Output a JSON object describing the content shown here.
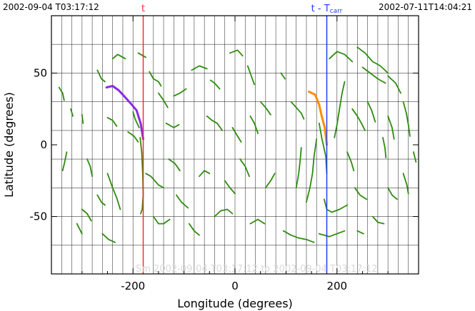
{
  "header": {
    "left_timestamp": "2002-09-04 T03:17:12",
    "right_timestamp": "2002-07-11T14:04:21",
    "faint_caption": "Sm 2002-09-04 T03:17:12 to 2002-09-04 T03:17:12"
  },
  "colors": {
    "axis": "#000000",
    "grid": "#000000",
    "green_filaments": "#2e8b0e",
    "purple_filament": "#8a2be2",
    "orange_filament": "#ff8c00",
    "red_marker": "#ff2a2a",
    "blue_marker": "#1f3cff"
  },
  "chart_data": {
    "type": "scatter",
    "xlabel": "Longitude (degrees)",
    "ylabel": "Latitude (degrees)",
    "xlim": [
      -360,
      360
    ],
    "ylim": [
      -90,
      90
    ],
    "x_ticks": [
      -200,
      0,
      200
    ],
    "y_ticks": [
      -50,
      0,
      50
    ],
    "x_tick_labels": [
      "-200",
      "0",
      "200"
    ],
    "y_tick_labels": [
      "-50",
      "0",
      "50"
    ],
    "grid": {
      "vertical_step_deg": 20,
      "horizontal_lines_deg": [
        -70,
        -50,
        -30,
        -10,
        10,
        30,
        50,
        70
      ]
    },
    "markers": [
      {
        "label": "t",
        "x": -180,
        "color_key": "red_marker"
      },
      {
        "label_main": "t - T",
        "label_sub": "carr",
        "x": 180,
        "color_key": "blue_marker"
      }
    ],
    "highlight_tracks": [
      {
        "color_key": "purple_filament",
        "points": [
          [
            -252,
            40
          ],
          [
            -240,
            41
          ],
          [
            -228,
            38
          ],
          [
            -215,
            33
          ],
          [
            -205,
            29
          ],
          [
            -193,
            24
          ],
          [
            -185,
            15
          ],
          [
            -180,
            4
          ]
        ]
      },
      {
        "color_key": "orange_filament",
        "points": [
          [
            145,
            37
          ],
          [
            157,
            35
          ],
          [
            165,
            28
          ],
          [
            170,
            20
          ],
          [
            176,
            12
          ],
          [
            180,
            0
          ]
        ]
      }
    ],
    "filaments": [
      [
        [
          -345,
          40
        ],
        [
          -338,
          36
        ],
        [
          -335,
          31
        ]
      ],
      [
        [
          -322,
          25
        ],
        [
          -318,
          20
        ]
      ],
      [
        [
          -300,
          21
        ],
        [
          -298,
          15
        ]
      ],
      [
        [
          -270,
          52
        ],
        [
          -262,
          46
        ],
        [
          -255,
          44
        ]
      ],
      [
        [
          -240,
          60
        ],
        [
          -230,
          63
        ],
        [
          -215,
          60
        ]
      ],
      [
        [
          -190,
          64
        ],
        [
          -175,
          61
        ]
      ],
      [
        [
          -168,
          51
        ],
        [
          -160,
          46
        ],
        [
          -150,
          44
        ],
        [
          -145,
          41
        ]
      ],
      [
        [
          -150,
          36
        ],
        [
          -140,
          31
        ],
        [
          -132,
          26
        ]
      ],
      [
        [
          -200,
          23
        ],
        [
          -196,
          18
        ],
        [
          -188,
          12
        ]
      ],
      [
        [
          -250,
          19
        ],
        [
          -240,
          17
        ],
        [
          -232,
          13
        ]
      ],
      [
        [
          -210,
          9
        ],
        [
          -198,
          6
        ],
        [
          -190,
          2
        ]
      ],
      [
        [
          -135,
          15
        ],
        [
          -120,
          12
        ],
        [
          -110,
          14
        ]
      ],
      [
        [
          -120,
          34
        ],
        [
          -108,
          36
        ],
        [
          -96,
          39
        ]
      ],
      [
        [
          -85,
          52
        ],
        [
          -70,
          55
        ],
        [
          -55,
          53
        ]
      ],
      [
        [
          -48,
          45
        ],
        [
          -40,
          43
        ],
        [
          -30,
          39
        ]
      ],
      [
        [
          -10,
          64
        ],
        [
          5,
          66
        ],
        [
          15,
          62
        ]
      ],
      [
        [
          25,
          55
        ],
        [
          32,
          48
        ],
        [
          38,
          42
        ]
      ],
      [
        [
          -55,
          20
        ],
        [
          -45,
          17
        ],
        [
          -35,
          15
        ],
        [
          -25,
          10
        ]
      ],
      [
        [
          -5,
          12
        ],
        [
          5,
          6
        ],
        [
          12,
          2
        ]
      ],
      [
        [
          50,
          30
        ],
        [
          60,
          26
        ],
        [
          70,
          21
        ]
      ],
      [
        [
          30,
          20
        ],
        [
          38,
          15
        ],
        [
          45,
          8
        ]
      ],
      [
        [
          90,
          50
        ],
        [
          98,
          46
        ]
      ],
      [
        [
          110,
          30
        ],
        [
          120,
          26
        ],
        [
          130,
          22
        ],
        [
          135,
          18
        ]
      ],
      [
        [
          195,
          5
        ],
        [
          200,
          14
        ],
        [
          205,
          25
        ],
        [
          210,
          36
        ],
        [
          215,
          44
        ]
      ],
      [
        [
          185,
          60
        ],
        [
          200,
          65
        ],
        [
          215,
          63
        ],
        [
          230,
          58
        ]
      ],
      [
        [
          240,
          68
        ],
        [
          255,
          64
        ],
        [
          270,
          58
        ],
        [
          285,
          55
        ],
        [
          300,
          50
        ]
      ],
      [
        [
          250,
          54
        ],
        [
          265,
          50
        ],
        [
          280,
          46
        ],
        [
          295,
          43
        ]
      ],
      [
        [
          300,
          48
        ],
        [
          315,
          43
        ],
        [
          325,
          36
        ]
      ],
      [
        [
          330,
          30
        ],
        [
          336,
          22
        ],
        [
          340,
          14
        ],
        [
          343,
          6
        ]
      ],
      [
        [
          260,
          30
        ],
        [
          268,
          24
        ],
        [
          275,
          16
        ]
      ],
      [
        [
          230,
          25
        ],
        [
          240,
          20
        ],
        [
          248,
          15
        ],
        [
          255,
          10
        ]
      ],
      [
        [
          300,
          20
        ],
        [
          308,
          12
        ],
        [
          312,
          4
        ]
      ],
      [
        [
          220,
          -5
        ],
        [
          228,
          -12
        ],
        [
          233,
          -18
        ]
      ],
      [
        [
          290,
          5
        ],
        [
          294,
          -2
        ],
        [
          296,
          -9
        ]
      ],
      [
        [
          350,
          -5
        ],
        [
          355,
          -12
        ]
      ],
      [
        [
          -330,
          -5
        ],
        [
          -334,
          -12
        ],
        [
          -338,
          -18
        ]
      ],
      [
        [
          -290,
          -10
        ],
        [
          -284,
          -15
        ],
        [
          -280,
          -22
        ]
      ],
      [
        [
          -250,
          -20
        ],
        [
          -240,
          -30
        ],
        [
          -232,
          -37
        ],
        [
          -225,
          -45
        ]
      ],
      [
        [
          -270,
          -35
        ],
        [
          -262,
          -40
        ],
        [
          -255,
          -42
        ]
      ],
      [
        [
          -300,
          -45
        ],
        [
          -290,
          -48
        ],
        [
          -282,
          -53
        ]
      ],
      [
        [
          -310,
          -55
        ],
        [
          -300,
          -62
        ]
      ],
      [
        [
          -260,
          -62
        ],
        [
          -248,
          -66
        ],
        [
          -235,
          -68
        ]
      ],
      [
        [
          -186,
          5
        ],
        [
          -183,
          -5
        ],
        [
          -181,
          -20
        ],
        [
          -180,
          -35
        ],
        [
          -182,
          -45
        ],
        [
          -185,
          -48
        ]
      ],
      [
        [
          -175,
          -20
        ],
        [
          -165,
          -22
        ],
        [
          -150,
          -28
        ],
        [
          -140,
          -30
        ]
      ],
      [
        [
          -160,
          -50
        ],
        [
          -150,
          -55
        ],
        [
          -140,
          -55
        ],
        [
          -128,
          -52
        ]
      ],
      [
        [
          -130,
          -10
        ],
        [
          -118,
          -13
        ],
        [
          -108,
          -18
        ]
      ],
      [
        [
          -115,
          -35
        ],
        [
          -105,
          -40
        ],
        [
          -92,
          -44
        ]
      ],
      [
        [
          -70,
          -22
        ],
        [
          -60,
          -18
        ],
        [
          -50,
          -20
        ]
      ],
      [
        [
          -90,
          -55
        ],
        [
          -80,
          -60
        ],
        [
          -70,
          -63
        ]
      ],
      [
        [
          -40,
          -50
        ],
        [
          -28,
          -46
        ],
        [
          -15,
          -45
        ],
        [
          -5,
          -48
        ]
      ],
      [
        [
          -20,
          -25
        ],
        [
          -10,
          -30
        ],
        [
          0,
          -34
        ]
      ],
      [
        [
          10,
          -10
        ],
        [
          20,
          -15
        ],
        [
          28,
          -22
        ]
      ],
      [
        [
          30,
          -55
        ],
        [
          45,
          -52
        ],
        [
          58,
          -55
        ]
      ],
      [
        [
          60,
          -30
        ],
        [
          70,
          -25
        ],
        [
          78,
          -20
        ]
      ],
      [
        [
          95,
          -60
        ],
        [
          110,
          -63
        ],
        [
          125,
          -65
        ],
        [
          140,
          -66
        ],
        [
          155,
          -68
        ]
      ],
      [
        [
          165,
          -62
        ],
        [
          185,
          -64
        ],
        [
          200,
          -62
        ],
        [
          215,
          -60
        ]
      ],
      [
        [
          175,
          -38
        ],
        [
          180,
          -45
        ],
        [
          190,
          -47
        ],
        [
          205,
          -45
        ],
        [
          220,
          -42
        ]
      ],
      [
        [
          120,
          -30
        ],
        [
          125,
          -20
        ],
        [
          128,
          -10
        ],
        [
          130,
          -2
        ]
      ],
      [
        [
          140,
          -40
        ],
        [
          147,
          -30
        ],
        [
          152,
          -20
        ],
        [
          155,
          -8
        ],
        [
          160,
          4
        ]
      ],
      [
        [
          235,
          -30
        ],
        [
          245,
          -35
        ],
        [
          258,
          -38
        ]
      ],
      [
        [
          270,
          -50
        ],
        [
          280,
          -54
        ],
        [
          292,
          -55
        ]
      ],
      [
        [
          300,
          -30
        ],
        [
          308,
          -35
        ],
        [
          318,
          -38
        ]
      ],
      [
        [
          330,
          -20
        ],
        [
          337,
          -28
        ],
        [
          340,
          -34
        ]
      ],
      [
        [
          240,
          -60
        ],
        [
          252,
          -62
        ]
      ],
      [
        [
          165,
          15
        ],
        [
          170,
          5
        ],
        [
          178,
          -8
        ],
        [
          180,
          -20
        ]
      ]
    ]
  }
}
